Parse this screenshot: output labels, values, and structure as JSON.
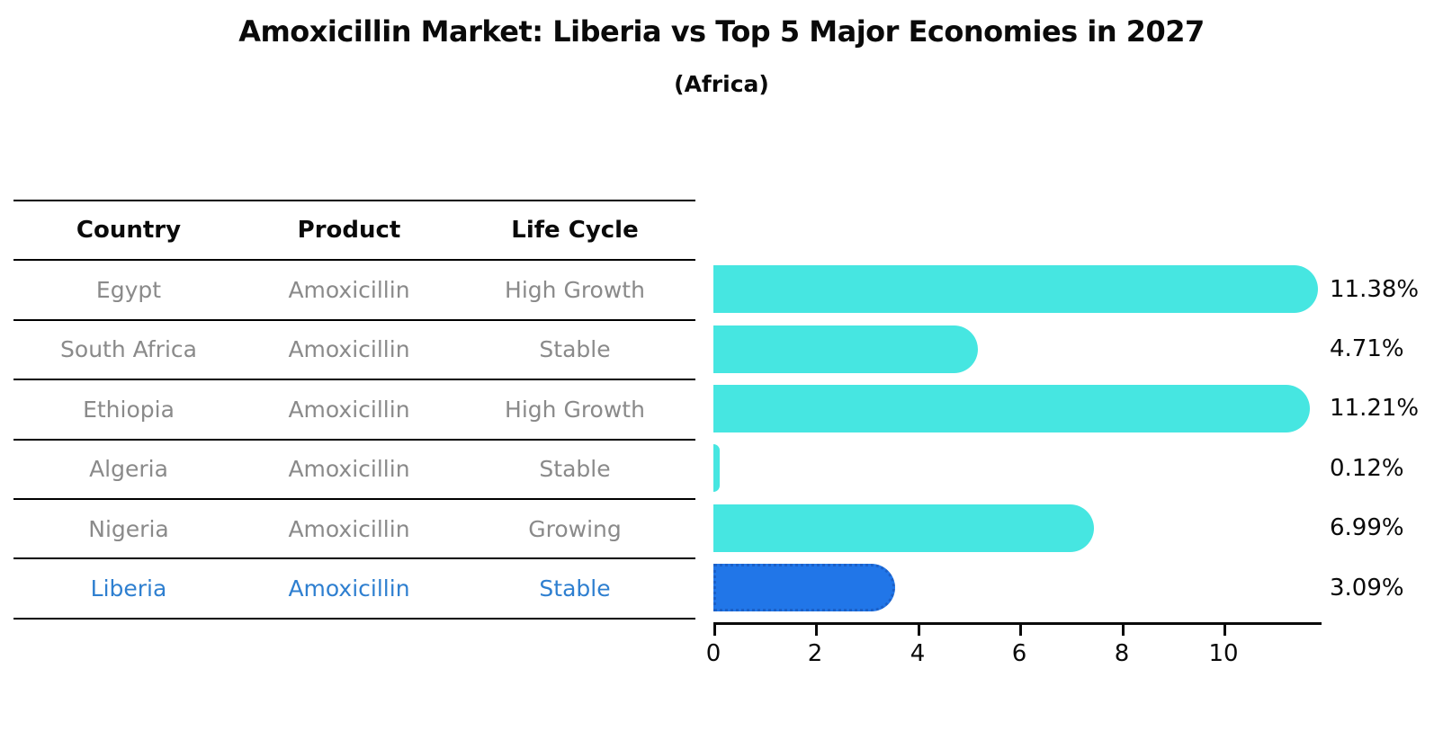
{
  "title": "Amoxicillin Market: Liberia vs Top 5 Major Economies in 2027",
  "subtitle": "(Africa)",
  "table": {
    "headers": [
      "Country",
      "Product",
      "Life Cycle"
    ],
    "rows": [
      {
        "country": "Egypt",
        "product": "Amoxicillin",
        "life_cycle": "High Growth",
        "highlight": false
      },
      {
        "country": "South Africa",
        "product": "Amoxicillin",
        "life_cycle": "Stable",
        "highlight": false
      },
      {
        "country": "Ethiopia",
        "product": "Amoxicillin",
        "life_cycle": "High Growth",
        "highlight": false
      },
      {
        "country": "Algeria",
        "product": "Amoxicillin",
        "life_cycle": "Stable",
        "highlight": false
      },
      {
        "country": "Nigeria",
        "product": "Amoxicillin",
        "life_cycle": "Growing",
        "highlight": false
      },
      {
        "country": "Liberia",
        "product": "Amoxicillin",
        "life_cycle": "Stable",
        "highlight": true
      }
    ]
  },
  "chart_data": {
    "type": "bar",
    "orientation": "horizontal",
    "title": "Amoxicillin Market: Liberia vs Top 5 Major Economies in 2027 (Africa)",
    "categories": [
      "Egypt",
      "South Africa",
      "Ethiopia",
      "Algeria",
      "Nigeria",
      "Liberia"
    ],
    "values": [
      11.38,
      4.71,
      11.21,
      0.12,
      6.99,
      3.09
    ],
    "value_labels": [
      "11.38%",
      "4.71%",
      "11.21%",
      "0.12%",
      "6.99%",
      "3.09%"
    ],
    "x_ticks": [
      "0",
      "2",
      "4",
      "6",
      "8",
      "10"
    ],
    "xlim": [
      0,
      11.9
    ],
    "xlabel": "",
    "ylabel": "",
    "grid": false,
    "legend": false,
    "bar_color": "#46e6e1",
    "highlight_index": 5,
    "highlight_bar_color": "#2176e8",
    "highlight_bar_border_color": "#1b60c8",
    "highlight_text_color": "#2e7fd0"
  }
}
